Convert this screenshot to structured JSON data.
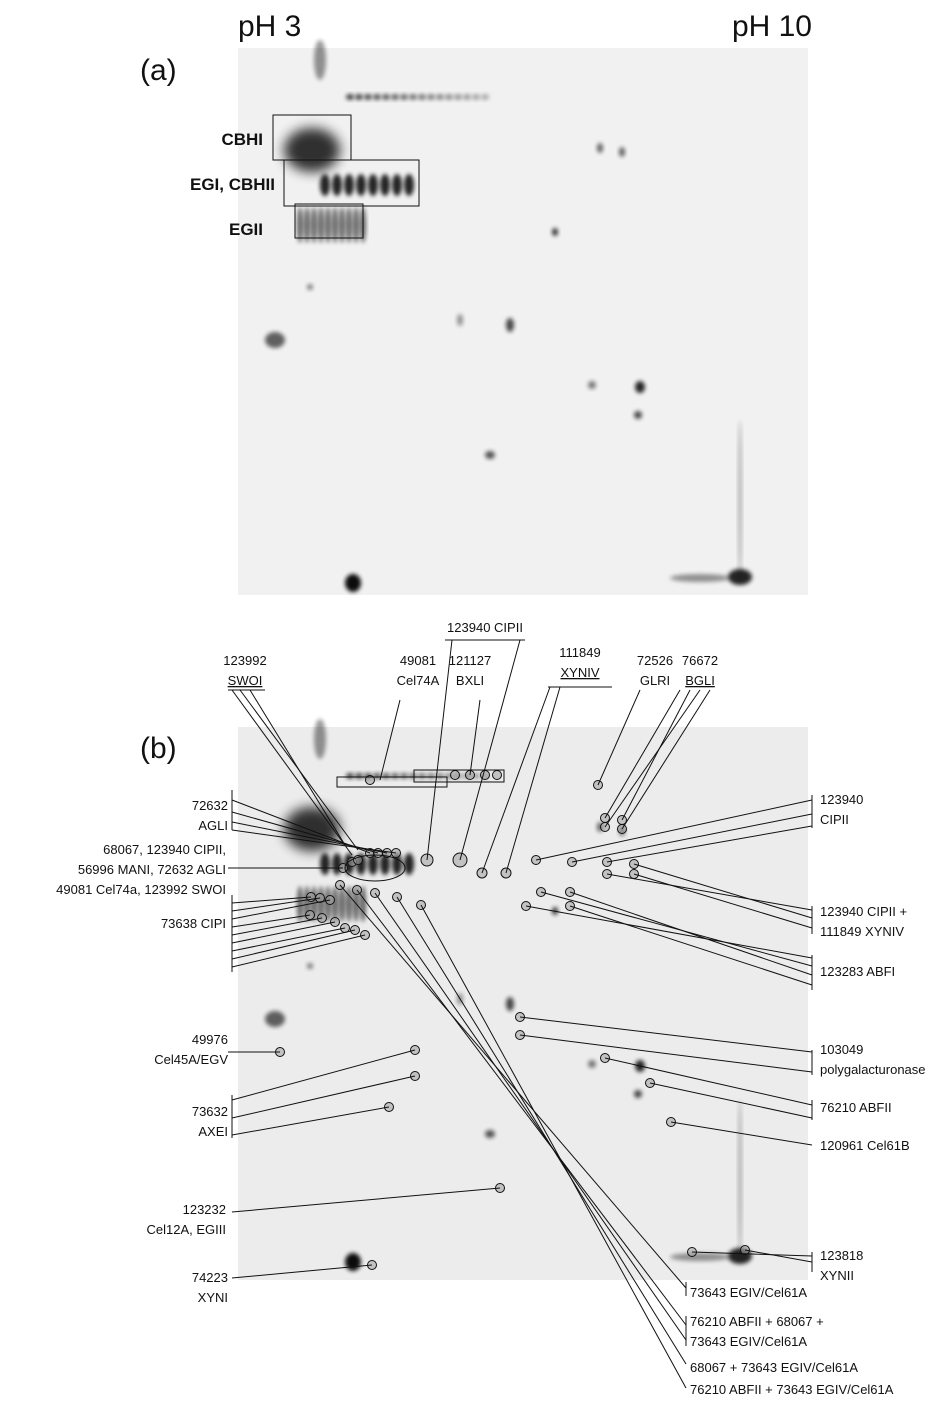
{
  "panel_a": {
    "label": "(a)",
    "ph_left": "pH 3",
    "ph_right": "pH 10",
    "boxes": [
      "CBHI",
      "EGI, CBHII",
      "EGII"
    ]
  },
  "panel_b": {
    "label": "(b)",
    "top_labels": [
      [
        "123992",
        "SWOI"
      ],
      [
        "49081",
        "Cel74A"
      ],
      [
        "123940 CIPII"
      ],
      [
        "121127",
        "BXLI"
      ],
      [
        "111849",
        "XYNIV"
      ],
      [
        "72526",
        "GLRI"
      ],
      [
        "76672",
        "BGLI"
      ]
    ],
    "left_labels": [
      [
        "72632",
        "AGLI"
      ],
      [
        "68067, 123940 CIPII,",
        "56996 MANI, 72632 AGLI",
        "49081 Cel74a, 123992 SWOI"
      ],
      [
        "73638 CIPI"
      ],
      [
        "49976",
        "Cel45A/EGV"
      ],
      [
        "73632",
        "AXEI"
      ],
      [
        "123232",
        "Cel12A, EGIII"
      ],
      [
        "74223",
        "XYNI"
      ]
    ],
    "right_labels": [
      [
        "123940",
        "CIPII"
      ],
      [
        "123940 CIPII +",
        "111849 XYNIV"
      ],
      [
        "123283 ABFI"
      ],
      [
        "103049",
        "polygalacturonase"
      ],
      [
        "76210 ABFII"
      ],
      [
        "120961 Cel61B"
      ],
      [
        "123818",
        "XYNII"
      ]
    ],
    "bottom_labels": [
      [
        "73643 EGIV/Cel61A"
      ],
      [
        "76210 ABFII + 68067 +",
        "73643 EGIV/Cel61A"
      ],
      [
        "68067 + 73643 EGIV/Cel61A"
      ],
      [
        "76210 ABFII + 73643 EGIV/Cel61A"
      ]
    ]
  }
}
